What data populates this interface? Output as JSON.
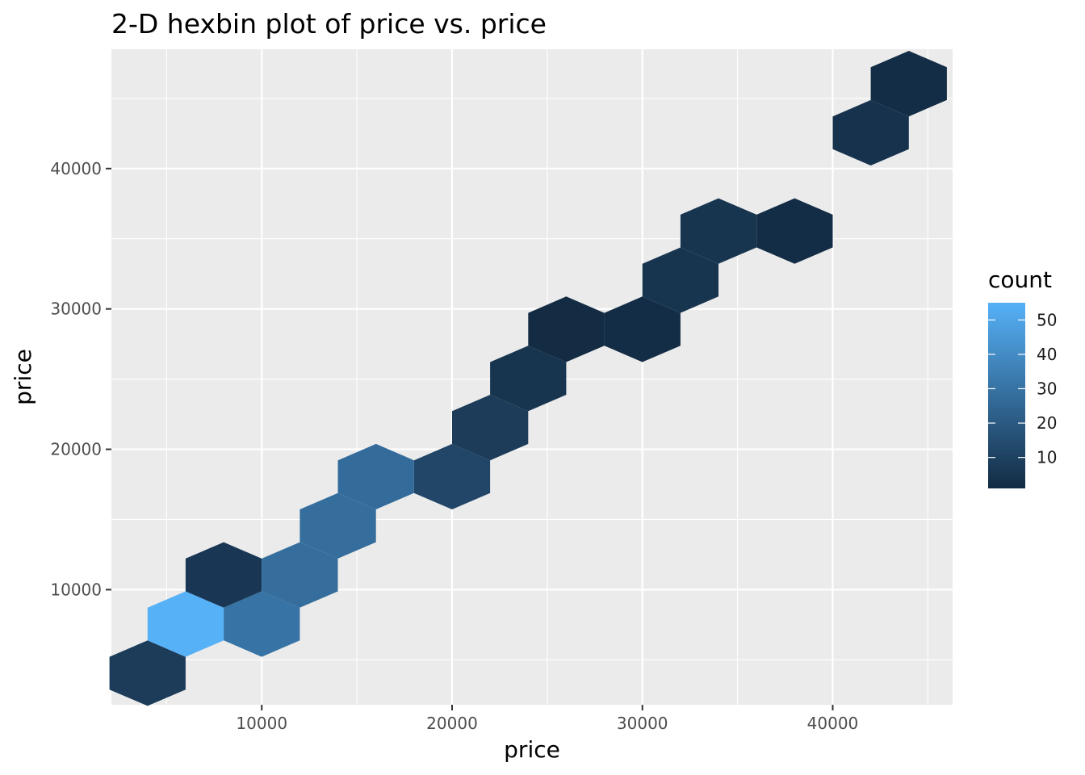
{
  "chart_data": {
    "type": "hexbin",
    "title": "2-D hexbin plot of price vs. price",
    "xlabel": "price",
    "ylabel": "price",
    "xlim": [
      2100,
      46300
    ],
    "ylim": [
      1800,
      48500
    ],
    "x_ticks": [
      10000,
      20000,
      30000,
      40000
    ],
    "y_ticks": [
      10000,
      20000,
      30000,
      40000
    ],
    "x_tick_labels": [
      "10000",
      "20000",
      "30000",
      "40000"
    ],
    "y_tick_labels": [
      "10000",
      "20000",
      "30000",
      "40000"
    ],
    "grid": true,
    "legend": {
      "title": "count",
      "position": "right",
      "breaks": [
        10,
        20,
        30,
        40,
        50
      ],
      "labels": [
        "10",
        "20",
        "30",
        "40",
        "50"
      ],
      "min": 1,
      "max": 55,
      "color_low": "#132B43",
      "color_high": "#56B1F7"
    },
    "bins": [
      {
        "x": 4000,
        "y": 4050,
        "count": 8
      },
      {
        "x": 6000,
        "y": 7550,
        "count": 55
      },
      {
        "x": 8000,
        "y": 11050,
        "count": 6
      },
      {
        "x": 10000,
        "y": 7550,
        "count": 30
      },
      {
        "x": 12000,
        "y": 11050,
        "count": 28
      },
      {
        "x": 14000,
        "y": 14550,
        "count": 28
      },
      {
        "x": 16000,
        "y": 18050,
        "count": 27
      },
      {
        "x": 20000,
        "y": 18050,
        "count": 12
      },
      {
        "x": 22000,
        "y": 21550,
        "count": 8
      },
      {
        "x": 24000,
        "y": 25050,
        "count": 5
      },
      {
        "x": 26000,
        "y": 28550,
        "count": 1
      },
      {
        "x": 30000,
        "y": 28550,
        "count": 2
      },
      {
        "x": 32000,
        "y": 32050,
        "count": 5
      },
      {
        "x": 34000,
        "y": 35550,
        "count": 5
      },
      {
        "x": 38000,
        "y": 35550,
        "count": 2
      },
      {
        "x": 42000,
        "y": 42550,
        "count": 4
      },
      {
        "x": 44000,
        "y": 46050,
        "count": 2
      }
    ]
  }
}
